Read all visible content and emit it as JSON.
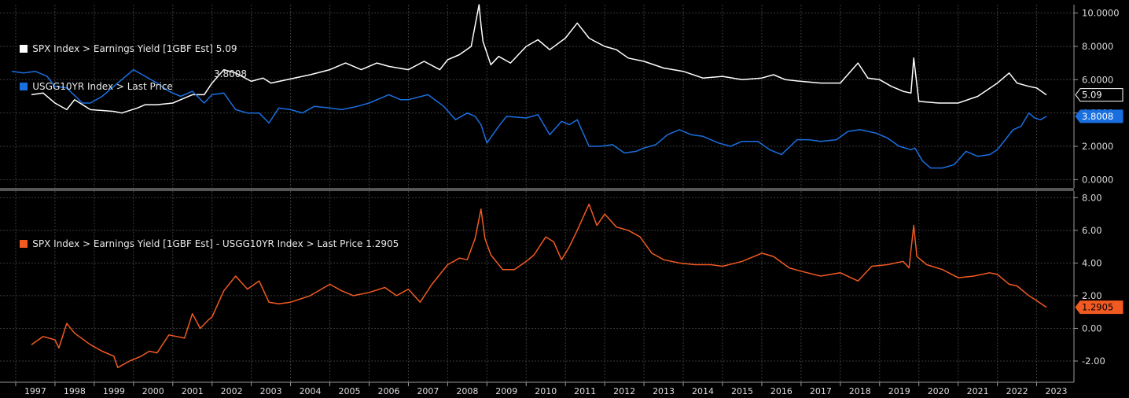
{
  "colors": {
    "background": "#000000",
    "grid": "#3a3a3a",
    "axis": "#9a9a9a",
    "white_series": "#ffffff",
    "blue_series": "#1a6fe0",
    "orange_series": "#f25a22",
    "tag_text_dark": "#000000"
  },
  "legend": {
    "top": [
      {
        "name": "SPX Index > Earnings Yield [1GBF Est]",
        "value": "5.09",
        "color": "#ffffff"
      },
      {
        "name": "USGG10YR Index > Last Price",
        "value": "3.8008",
        "color": "#1a6fe0"
      }
    ],
    "bottom": [
      {
        "name": "SPX Index > Earnings Yield [1GBF Est] - USGG10YR Index > Last Price",
        "value": "1.2905",
        "color": "#f25a22"
      }
    ]
  },
  "chart_data": [
    {
      "type": "line",
      "ylim": [
        -0.5,
        10.5
      ],
      "yticks": [
        "10.0000",
        "8.0000",
        "6.0000",
        "4.0000",
        "2.0000",
        "0.0000"
      ],
      "ytick_values": [
        10,
        8,
        6,
        4,
        2,
        0
      ],
      "last_value_tags": [
        "5.09",
        "3.8008"
      ],
      "series": [
        {
          "name": "SPX Index > Earnings Yield [1GBF Est]",
          "color": "#ffffff",
          "x": [
            1997.4,
            1997.7,
            1998.0,
            1998.3,
            1998.5,
            1998.9,
            1999.5,
            1999.7,
            2000.1,
            2000.3,
            2000.6,
            2001.0,
            2001.5,
            2001.8,
            2002.0,
            2002.3,
            2002.6,
            2003.0,
            2003.3,
            2003.5,
            2004.5,
            2005.0,
            2005.4,
            2005.8,
            2006.2,
            2006.5,
            2007.0,
            2007.4,
            2007.8,
            2008.0,
            2008.3,
            2008.6,
            2008.8,
            2008.85,
            2008.9,
            2009.1,
            2009.3,
            2009.6,
            2010.0,
            2010.3,
            2010.6,
            2011.0,
            2011.3,
            2011.6,
            2011.75,
            2012.0,
            2012.3,
            2012.6,
            2013.0,
            2013.5,
            2014.0,
            2014.5,
            2015.0,
            2015.5,
            2016.0,
            2016.3,
            2016.6,
            2017.0,
            2017.5,
            2018.0,
            2018.45,
            2018.7,
            2019.0,
            2019.3,
            2019.6,
            2019.8,
            2019.87,
            2020.0,
            2020.5,
            2021.0,
            2021.5,
            2022.0,
            2022.3,
            2022.5,
            2022.8,
            2023.0,
            2023.25
          ],
          "values": [
            5.1,
            5.2,
            4.6,
            4.2,
            4.8,
            4.2,
            4.1,
            4.0,
            4.3,
            4.5,
            4.5,
            4.6,
            5.1,
            5.1,
            5.8,
            6.6,
            6.4,
            5.9,
            6.1,
            5.8,
            6.3,
            6.6,
            7.0,
            6.6,
            7.0,
            6.8,
            6.6,
            7.1,
            6.6,
            7.2,
            7.5,
            8.0,
            10.5,
            9.3,
            8.3,
            6.9,
            7.4,
            7.0,
            8.0,
            8.4,
            7.8,
            8.5,
            9.4,
            8.5,
            8.3,
            8.0,
            7.8,
            7.3,
            7.1,
            6.7,
            6.5,
            6.1,
            6.2,
            6.0,
            6.1,
            6.3,
            6.0,
            5.9,
            5.8,
            5.8,
            7.0,
            6.1,
            6.0,
            5.6,
            5.3,
            5.2,
            7.3,
            4.7,
            4.6,
            4.6,
            5.0,
            5.8,
            6.4,
            5.8,
            5.6,
            5.5,
            5.09
          ]
        },
        {
          "name": "USGG10YR Index > Last Price",
          "color": "#1a6fe0",
          "x": [
            1996.9,
            1997.2,
            1997.5,
            1997.8,
            1998.0,
            1998.3,
            1998.7,
            1998.9,
            1999.2,
            1999.5,
            1999.8,
            2000.0,
            2000.3,
            2000.6,
            2000.9,
            2001.2,
            2001.5,
            2001.8,
            2002.0,
            2002.3,
            2002.6,
            2002.9,
            2003.2,
            2003.45,
            2003.7,
            2004.0,
            2004.3,
            2004.6,
            2005.0,
            2005.3,
            2005.7,
            2006.0,
            2006.5,
            2006.8,
            2007.0,
            2007.5,
            2007.9,
            2008.2,
            2008.5,
            2008.7,
            2008.85,
            2009.0,
            2009.3,
            2009.5,
            2010.0,
            2010.3,
            2010.6,
            2010.9,
            2011.1,
            2011.3,
            2011.6,
            2011.9,
            2012.2,
            2012.5,
            2012.8,
            2013.0,
            2013.3,
            2013.6,
            2013.9,
            2014.2,
            2014.5,
            2014.9,
            2015.2,
            2015.5,
            2015.9,
            2016.2,
            2016.5,
            2016.9,
            2017.2,
            2017.5,
            2017.9,
            2018.2,
            2018.5,
            2018.9,
            2019.2,
            2019.5,
            2019.8,
            2019.9,
            2020.1,
            2020.3,
            2020.6,
            2020.9,
            2021.2,
            2021.5,
            2021.8,
            2022.0,
            2022.2,
            2022.4,
            2022.6,
            2022.8,
            2022.95,
            2023.1,
            2023.25
          ],
          "values": [
            6.5,
            6.4,
            6.5,
            6.2,
            5.6,
            5.5,
            4.6,
            4.6,
            5.0,
            5.6,
            6.2,
            6.6,
            6.2,
            5.8,
            5.3,
            5.0,
            5.3,
            4.6,
            5.1,
            5.2,
            4.2,
            4.0,
            4.0,
            3.4,
            4.3,
            4.2,
            4.0,
            4.4,
            4.3,
            4.2,
            4.4,
            4.6,
            5.1,
            4.8,
            4.8,
            5.1,
            4.4,
            3.6,
            4.0,
            3.8,
            3.3,
            2.2,
            3.2,
            3.8,
            3.7,
            3.9,
            2.7,
            3.5,
            3.3,
            3.6,
            2.0,
            2.0,
            2.1,
            1.6,
            1.7,
            1.9,
            2.1,
            2.7,
            3.0,
            2.7,
            2.6,
            2.2,
            2.0,
            2.3,
            2.3,
            1.8,
            1.5,
            2.4,
            2.4,
            2.3,
            2.4,
            2.9,
            3.0,
            2.8,
            2.5,
            2.0,
            1.8,
            1.9,
            1.1,
            0.7,
            0.7,
            0.9,
            1.7,
            1.4,
            1.5,
            1.8,
            2.4,
            3.0,
            3.2,
            4.0,
            3.7,
            3.6,
            3.8008
          ]
        }
      ]
    },
    {
      "type": "line",
      "ylim": [
        -3.3,
        8.4
      ],
      "yticks": [
        "8.00",
        "6.00",
        "4.00",
        "2.00",
        "0.00",
        "-2.00"
      ],
      "ytick_values": [
        8,
        6,
        4,
        2,
        0,
        -2
      ],
      "last_value_tags": [
        "1.2905"
      ],
      "xticks": [
        "1997",
        "1998",
        "1999",
        "2000",
        "2001",
        "2002",
        "2003",
        "2004",
        "2005",
        "2006",
        "2007",
        "2008",
        "2009",
        "2010",
        "2011",
        "2012",
        "2013",
        "2014",
        "2015",
        "2016",
        "2017",
        "2018",
        "2019",
        "2020",
        "2021",
        "2022",
        "2023"
      ],
      "series": [
        {
          "name": "SPX Index > Earnings Yield [1GBF Est] - USGG10YR Index > Last Price",
          "color": "#f25a22",
          "x": [
            1997.4,
            1997.7,
            1998.0,
            1998.1,
            1998.3,
            1998.5,
            1998.9,
            1999.2,
            1999.5,
            1999.6,
            1999.9,
            2000.2,
            2000.4,
            2000.6,
            2000.9,
            2001.1,
            2001.3,
            2001.5,
            2001.7,
            2001.9,
            2002.0,
            2002.3,
            2002.6,
            2002.9,
            2003.2,
            2003.45,
            2003.7,
            2004.0,
            2004.5,
            2005.0,
            2005.3,
            2005.6,
            2006.0,
            2006.4,
            2006.7,
            2007.0,
            2007.3,
            2007.6,
            2008.0,
            2008.3,
            2008.5,
            2008.7,
            2008.85,
            2008.95,
            2009.1,
            2009.4,
            2009.7,
            2010.0,
            2010.2,
            2010.5,
            2010.7,
            2010.9,
            2011.1,
            2011.3,
            2011.6,
            2011.8,
            2012.0,
            2012.3,
            2012.6,
            2012.9,
            2013.2,
            2013.5,
            2013.9,
            2014.3,
            2014.7,
            2015.0,
            2015.5,
            2016.0,
            2016.3,
            2016.7,
            2017.0,
            2017.5,
            2018.0,
            2018.45,
            2018.8,
            2019.2,
            2019.6,
            2019.75,
            2019.87,
            2019.95,
            2020.2,
            2020.6,
            2021.0,
            2021.4,
            2021.8,
            2022.0,
            2022.3,
            2022.5,
            2022.8,
            2023.0,
            2023.25
          ],
          "values": [
            -1.0,
            -0.5,
            -0.7,
            -1.2,
            0.3,
            -0.3,
            -1.0,
            -1.4,
            -1.7,
            -2.4,
            -2.0,
            -1.7,
            -1.4,
            -1.5,
            -0.4,
            -0.5,
            -0.6,
            0.9,
            0.0,
            0.5,
            0.7,
            2.3,
            3.2,
            2.4,
            2.9,
            1.6,
            1.5,
            1.6,
            2.0,
            2.7,
            2.3,
            2.0,
            2.2,
            2.5,
            2.0,
            2.4,
            1.6,
            2.7,
            3.9,
            4.3,
            4.2,
            5.5,
            7.3,
            5.5,
            4.5,
            3.6,
            3.6,
            4.1,
            4.5,
            5.6,
            5.3,
            4.2,
            5.0,
            6.0,
            7.6,
            6.3,
            7.0,
            6.2,
            6.0,
            5.6,
            4.6,
            4.2,
            4.0,
            3.9,
            3.9,
            3.8,
            4.1,
            4.6,
            4.4,
            3.7,
            3.5,
            3.2,
            3.4,
            2.9,
            3.8,
            3.9,
            4.1,
            3.7,
            6.3,
            4.4,
            3.9,
            3.6,
            3.1,
            3.2,
            3.4,
            3.3,
            2.7,
            2.6,
            2.0,
            1.7,
            1.29
          ]
        }
      ]
    }
  ]
}
